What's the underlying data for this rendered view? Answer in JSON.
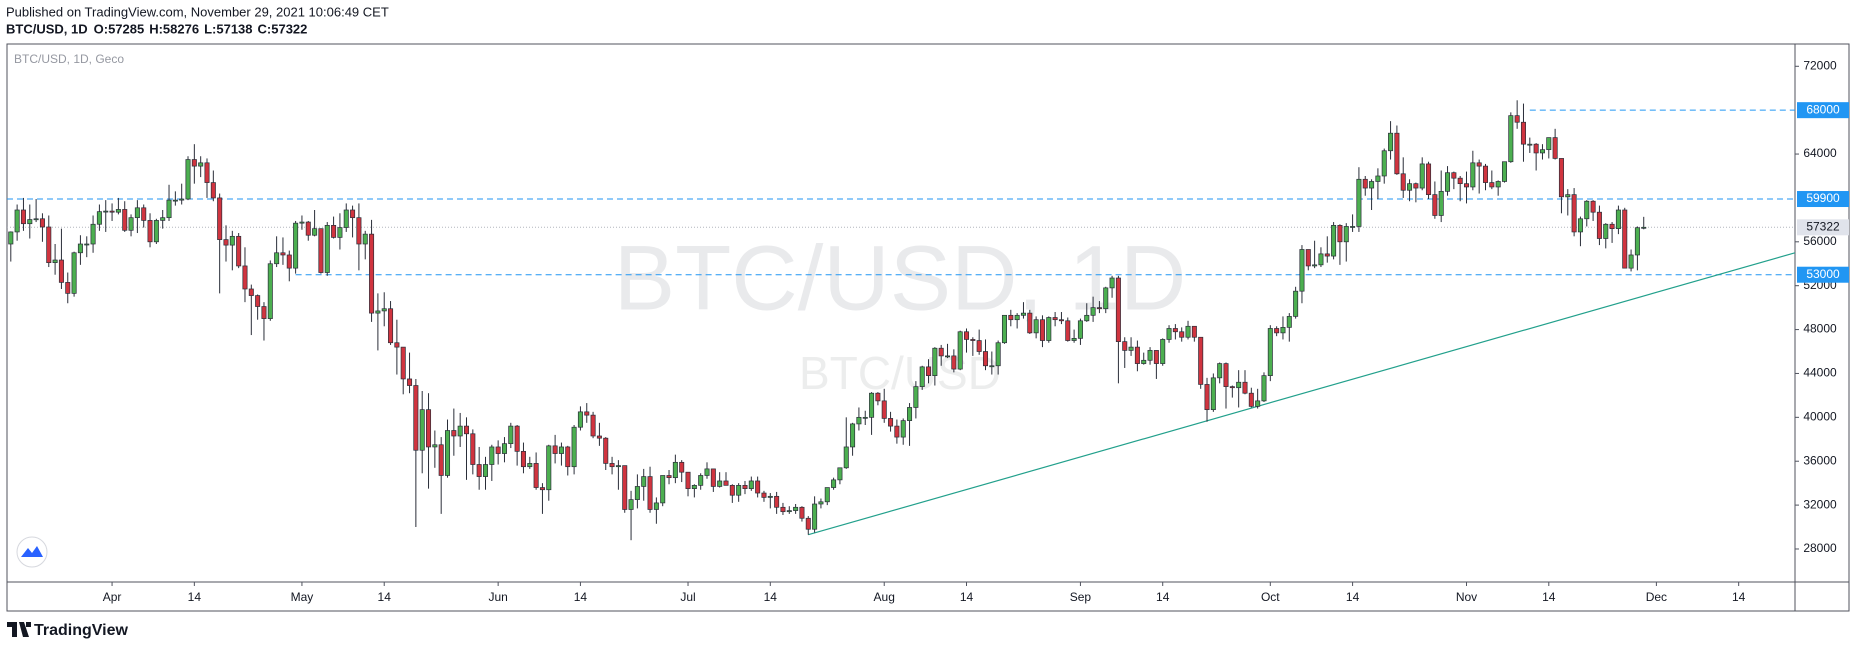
{
  "header": {
    "published": "Published on TradingView.com, November 29, 2021 10:06:49 CET",
    "symbol": "BTC/USD, 1D",
    "ohlc": [
      "O:57285",
      "H:58276",
      "L:57138",
      "C:57322"
    ]
  },
  "footer": {
    "brand": "TradingView"
  },
  "chart_data": {
    "type": "candlestick",
    "title": "BTC/USD, 1D, Geco",
    "watermark": "BTC/USD, 1D",
    "watermark_small": "BTC/USD",
    "up_color": "#4caf50",
    "down_color": "#d0343f",
    "open": [
      55800,
      56900,
      58900,
      57650,
      58030,
      58100,
      57350,
      54100,
      54340,
      52300,
      51300,
      55000,
      55800,
      55800,
      57600,
      58750,
      58800,
      58700,
      58950,
      57050,
      58200,
      59100,
      57950,
      56000,
      57950,
      58200,
      59800,
      59800,
      59900,
      63500,
      62900,
      63200,
      61400,
      60000,
      56200,
      55700,
      56500,
      53800,
      51700,
      51100,
      50100,
      49000,
      54000,
      55000,
      54800,
      53600,
      57700,
      57800,
      56600,
      57200,
      53200,
      57500,
      56400,
      57300,
      58900,
      58200,
      55800,
      56700,
      49500,
      49700,
      49900,
      46800,
      46400,
      43500,
      42900,
      37000,
      40700,
      37300,
      37500,
      34700,
      38800,
      38300,
      39200,
      38500,
      35700,
      34600,
      35700,
      37300,
      36700,
      37600,
      39200,
      36900,
      35500,
      35800,
      33600,
      33400,
      37400,
      36700,
      37300,
      35500,
      39100,
      40500,
      40200,
      38300,
      38100,
      35800,
      35500,
      35600,
      31600,
      32500,
      33700,
      34600,
      31600,
      32200,
      34700,
      34500,
      35900,
      35000,
      33500,
      33800,
      34700,
      35300,
      33700,
      34200,
      33800,
      32900,
      33800,
      33500,
      34200,
      33100,
      32700,
      32800,
      31800,
      31400,
      31500,
      31800,
      30800,
      29800,
      32100,
      32300,
      33600,
      34300,
      35400,
      37300,
      39400,
      40000,
      40000,
      42200,
      41500,
      39900,
      39200,
      38200,
      39700,
      40900,
      42800,
      44600,
      43800,
      46300,
      45600,
      45600,
      44400,
      47800,
      47100,
      47000,
      46000,
      44700,
      44700,
      46800,
      49300,
      48900,
      49300,
      49500,
      47700,
      48900,
      47000,
      49100,
      48900,
      48800,
      47000,
      47200,
      48800,
      49300,
      50000,
      49900,
      51800,
      52700,
      46900,
      46100,
      46400,
      44900,
      45200,
      46100,
      44900,
      47100,
      48100,
      47800,
      47300,
      48300,
      47300,
      43000,
      40700,
      43600,
      44900,
      42800,
      42700,
      43200,
      42200,
      41000,
      41500,
      43800,
      48100,
      47700,
      48200,
      49200,
      51500,
      55300,
      53800,
      53900,
      54900,
      54700,
      57500,
      56000,
      57400,
      57400,
      61700,
      60900,
      61500,
      62000,
      64300,
      65900,
      62200,
      60700,
      61300,
      60900,
      63100,
      60300,
      58400,
      60600,
      62300,
      61800,
      61300,
      61000,
      63200,
      62900,
      61400,
      61000,
      61500,
      63300,
      67500,
      66900,
      64900,
      64900,
      64100,
      64400,
      65500,
      63600,
      60100,
      60300,
      56900,
      58100,
      59700,
      58700,
      56300,
      57600,
      57200,
      58900,
      53600,
      54800,
      57285
    ],
    "high": [
      56950,
      59400,
      60000,
      59400,
      59900,
      58600,
      58400,
      55800,
      57200,
      53200,
      55100,
      56600,
      56500,
      58400,
      59400,
      59800,
      59500,
      60000,
      59700,
      58500,
      59800,
      59400,
      58600,
      58100,
      58900,
      61200,
      60600,
      61300,
      63800,
      64900,
      63800,
      63600,
      62500,
      60400,
      57500,
      57000,
      56800,
      55500,
      52100,
      51200,
      50500,
      54300,
      56500,
      56400,
      55200,
      57900,
      58400,
      57900,
      58900,
      57200,
      57800,
      58300,
      58600,
      59500,
      59300,
      59500,
      57000,
      58000,
      51300,
      51400,
      50600,
      48900,
      46400,
      45900,
      43500,
      42400,
      42200,
      38800,
      38200,
      39800,
      40800,
      40400,
      40000,
      38900,
      37300,
      36400,
      37500,
      37900,
      38200,
      39500,
      39300,
      37700,
      36400,
      36800,
      34000,
      37500,
      38400,
      37700,
      37400,
      39300,
      41000,
      41300,
      40500,
      39500,
      38200,
      36400,
      36100,
      35600,
      33300,
      34800,
      35300,
      35500,
      32700,
      34700,
      35200,
      36600,
      36100,
      35000,
      33900,
      34900,
      35900,
      35300,
      35000,
      35000,
      33900,
      34000,
      34200,
      34600,
      34600,
      33300,
      33100,
      33200,
      32200,
      31900,
      32100,
      31900,
      31000,
      32800,
      32600,
      33600,
      34500,
      35400,
      40000,
      39500,
      40900,
      40600,
      42300,
      42300,
      42600,
      40500,
      39800,
      39900,
      41300,
      43300,
      44700,
      45300,
      46400,
      46600,
      46700,
      46200,
      47900,
      48100,
      47300,
      48000,
      47100,
      46000,
      47000,
      49300,
      49800,
      49500,
      50500,
      49800,
      49200,
      49300,
      49200,
      49600,
      49600,
      49100,
      48000,
      49000,
      50400,
      51000,
      50600,
      51900,
      52900,
      52900,
      47300,
      47300,
      47000,
      45900,
      46400,
      46100,
      47200,
      48400,
      48500,
      48200,
      48800,
      48300,
      47300,
      43600,
      44000,
      45000,
      45000,
      42900,
      44300,
      44300,
      42700,
      42600,
      44100,
      48400,
      48300,
      49200,
      49500,
      51900,
      55700,
      55300,
      56100,
      55500,
      56500,
      57800,
      57600,
      57700,
      58500,
      62800,
      62000,
      61700,
      62700,
      64500,
      67000,
      66600,
      63700,
      61700,
      61400,
      63700,
      63300,
      61500,
      62500,
      62900,
      62400,
      62000,
      62400,
      64300,
      63500,
      63100,
      62500,
      61600,
      63300,
      67800,
      68900,
      68600,
      65500,
      65000,
      64900,
      65500,
      66300,
      63600,
      60800,
      60900,
      58300,
      59800,
      59800,
      59300,
      57700,
      57800,
      59300,
      59100,
      55300,
      57400,
      58276
    ],
    "low": [
      54200,
      56100,
      57000,
      56300,
      57800,
      56000,
      53700,
      53000,
      51700,
      50400,
      51000,
      53900,
      54600,
      55000,
      57000,
      56900,
      57900,
      58500,
      56900,
      56500,
      56800,
      57300,
      55500,
      55800,
      57200,
      57900,
      59300,
      59400,
      59800,
      61300,
      61900,
      60000,
      59700,
      51300,
      54200,
      53400,
      53600,
      50500,
      47500,
      48900,
      47000,
      48800,
      53700,
      53900,
      52400,
      53100,
      57100,
      56100,
      56500,
      53100,
      52900,
      56300,
      55300,
      56900,
      56400,
      53400,
      54400,
      48700,
      46100,
      48300,
      46600,
      43900,
      42100,
      42200,
      30000,
      34900,
      33500,
      35400,
      31200,
      34500,
      36500,
      37300,
      34300,
      34800,
      33400,
      33400,
      34200,
      35700,
      35900,
      37200,
      35600,
      34900,
      35300,
      33400,
      31200,
      32400,
      35800,
      35600,
      34700,
      34800,
      38800,
      39500,
      38100,
      37400,
      35200,
      34800,
      33400,
      31300,
      28800,
      31700,
      32400,
      31300,
      30300,
      31900,
      33900,
      34000,
      34100,
      32800,
      32700,
      33400,
      34400,
      33200,
      33600,
      33800,
      32200,
      32300,
      33000,
      33300,
      32700,
      32300,
      31700,
      31200,
      31100,
      31200,
      31200,
      30500,
      29300,
      29500,
      31700,
      32000,
      33400,
      33900,
      35300,
      36500,
      38800,
      39300,
      38400,
      41100,
      39500,
      38700,
      37600,
      37500,
      37400,
      39900,
      42500,
      43100,
      42900,
      44700,
      45400,
      44100,
      44300,
      45900,
      45600,
      45700,
      44300,
      43900,
      43900,
      46700,
      48300,
      48100,
      49000,
      47600,
      47200,
      46400,
      46800,
      48300,
      48500,
      46900,
      46800,
      46600,
      48700,
      48700,
      49500,
      49500,
      50900,
      43100,
      44500,
      45600,
      44200,
      44800,
      44800,
      43500,
      44700,
      46800,
      47100,
      46900,
      47100,
      46900,
      42600,
      39600,
      40500,
      43100,
      40800,
      41800,
      40900,
      42100,
      40900,
      40800,
      41400,
      43300,
      47400,
      47100,
      46900,
      49000,
      50400,
      53400,
      53600,
      53700,
      54100,
      54400,
      53900,
      54200,
      56900,
      56900,
      60200,
      58900,
      59900,
      61300,
      63500,
      62100,
      60000,
      59700,
      59600,
      60700,
      59900,
      58100,
      57800,
      60200,
      60800,
      59700,
      59500,
      60700,
      60400,
      60700,
      60800,
      60200,
      61400,
      63200,
      66300,
      63300,
      64100,
      62500,
      63500,
      63600,
      63500,
      58600,
      58400,
      56500,
      55600,
      57400,
      57900,
      55700,
      55400,
      55900,
      56700,
      53600,
      53300,
      53400,
      57138
    ],
    "close": [
      56900,
      58900,
      57650,
      58030,
      58100,
      57350,
      54100,
      54340,
      52300,
      51300,
      55000,
      55800,
      55800,
      57600,
      58750,
      58800,
      58700,
      58950,
      57050,
      58200,
      59100,
      57950,
      56000,
      57950,
      58200,
      59800,
      59800,
      59900,
      63500,
      62900,
      63200,
      61400,
      60000,
      56200,
      55700,
      56500,
      53800,
      51700,
      51100,
      50100,
      49000,
      54000,
      55000,
      54800,
      53600,
      57700,
      57800,
      56600,
      57200,
      53200,
      57500,
      56400,
      57300,
      58900,
      58200,
      55800,
      56700,
      49500,
      49700,
      49900,
      46800,
      46400,
      43500,
      42900,
      37000,
      40700,
      37300,
      37500,
      34700,
      38800,
      38300,
      39200,
      38500,
      35700,
      34600,
      35700,
      37300,
      36700,
      37600,
      39200,
      36900,
      35500,
      35800,
      33600,
      33400,
      37400,
      36700,
      37300,
      35500,
      39100,
      40500,
      40200,
      38300,
      38100,
      35800,
      35500,
      35600,
      31600,
      32500,
      33700,
      34600,
      31600,
      32200,
      34700,
      34500,
      35900,
      35000,
      33500,
      33800,
      34700,
      35300,
      33700,
      34200,
      33800,
      32900,
      33800,
      33500,
      34200,
      33100,
      32700,
      32800,
      31800,
      31400,
      31500,
      31800,
      30800,
      29800,
      32100,
      32300,
      33600,
      34300,
      35400,
      37300,
      39400,
      40000,
      40000,
      42200,
      41500,
      39900,
      39200,
      38200,
      39700,
      40900,
      42800,
      44600,
      43800,
      46300,
      45600,
      45600,
      44400,
      47800,
      47100,
      47000,
      46000,
      44700,
      44700,
      46800,
      49300,
      48900,
      49300,
      49500,
      47700,
      48900,
      47000,
      49100,
      48900,
      48800,
      47000,
      47200,
      48800,
      49300,
      50000,
      49900,
      51800,
      52700,
      46900,
      46100,
      46400,
      44900,
      45200,
      46100,
      44900,
      47100,
      48100,
      47800,
      47300,
      48300,
      47300,
      43000,
      40700,
      43600,
      44900,
      42800,
      42700,
      43200,
      42200,
      41000,
      41500,
      43800,
      48100,
      47700,
      48200,
      49200,
      51500,
      55300,
      53800,
      53900,
      54900,
      54700,
      57500,
      56000,
      57400,
      57400,
      61700,
      60900,
      61500,
      62000,
      64300,
      65900,
      62200,
      60700,
      61300,
      60900,
      63100,
      60300,
      58400,
      60600,
      62300,
      61800,
      61300,
      61000,
      63200,
      62900,
      61400,
      61000,
      61500,
      63300,
      67500,
      66900,
      64900,
      64900,
      64100,
      64400,
      65500,
      63600,
      60100,
      60300,
      56900,
      58100,
      59700,
      58700,
      56300,
      57600,
      57200,
      58900,
      53600,
      54800,
      57285,
      57322
    ],
    "xlim": [
      -0.6,
      281.9
    ],
    "xticks": [
      {
        "value": 16,
        "label": "Apr"
      },
      {
        "value": 29,
        "label": "14"
      },
      {
        "value": 46,
        "label": "May"
      },
      {
        "value": 59,
        "label": "14"
      },
      {
        "value": 77,
        "label": "Jun"
      },
      {
        "value": 90,
        "label": "14"
      },
      {
        "value": 107,
        "label": "Jul"
      },
      {
        "value": 120,
        "label": "14"
      },
      {
        "value": 138,
        "label": "Aug"
      },
      {
        "value": 151,
        "label": "14"
      },
      {
        "value": 169,
        "label": "Sep"
      },
      {
        "value": 182,
        "label": "14"
      },
      {
        "value": 199,
        "label": "Oct"
      },
      {
        "value": 212,
        "label": "14"
      },
      {
        "value": 230,
        "label": "Nov"
      },
      {
        "value": 243,
        "label": "14"
      },
      {
        "value": 260,
        "label": "Dec"
      },
      {
        "value": 273,
        "label": "14"
      }
    ],
    "ylim": [
      24990,
      73940
    ],
    "yticks": [
      28000,
      32000,
      36000,
      40000,
      44000,
      48000,
      52000,
      56000,
      64000,
      72000
    ],
    "levels": [
      {
        "value": 68000,
        "x_start": 240
      },
      {
        "value": 59900
      },
      {
        "value": 53000,
        "x_start": 45
      }
    ],
    "level_color": "#2196f3",
    "last_price": 57322,
    "last_price_color": "#b2b5be",
    "trendline": {
      "x": [
        126,
        281.9
      ],
      "y": [
        29300,
        55000
      ],
      "color": "#22a08c"
    }
  }
}
